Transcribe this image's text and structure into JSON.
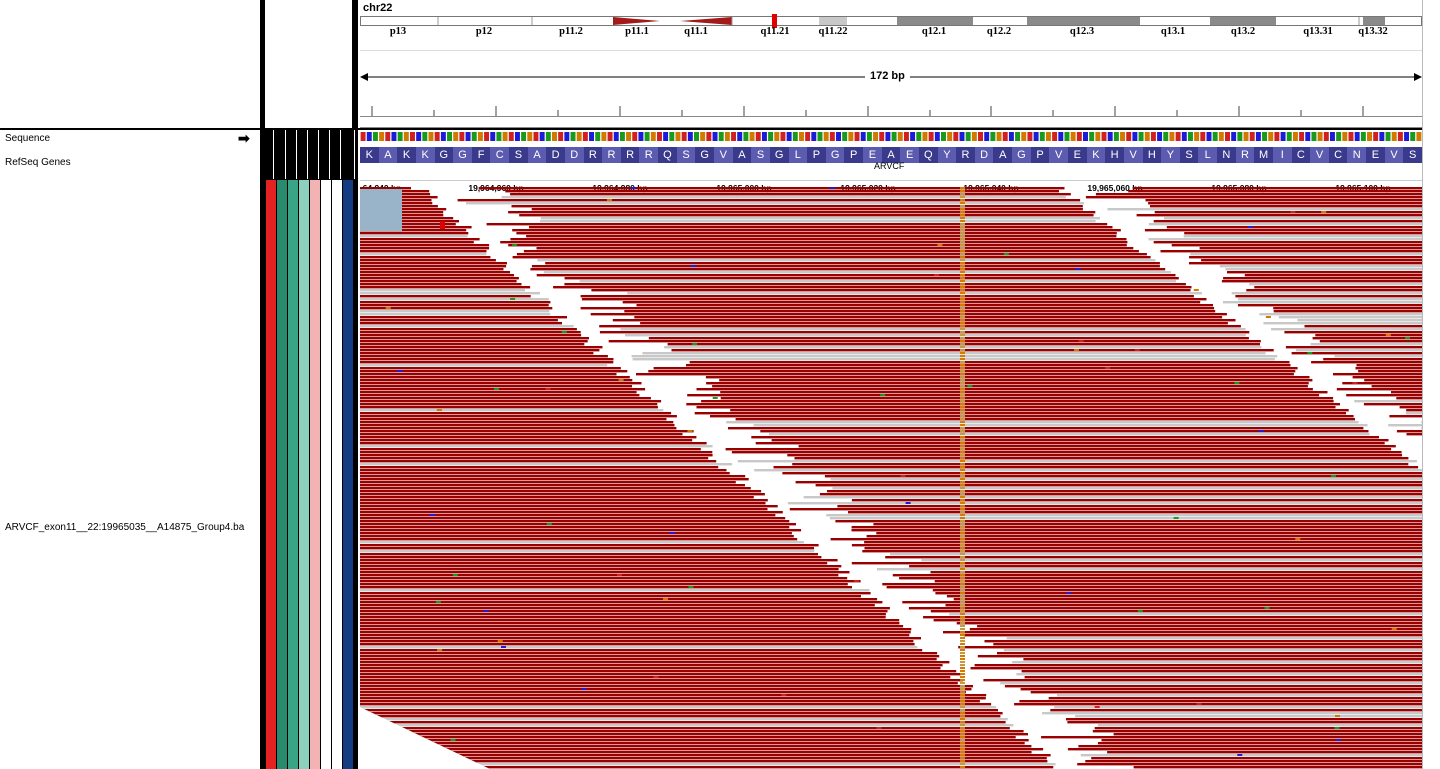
{
  "ideogram": {
    "chromosome": "chr22",
    "bands": [
      "p13",
      "p12",
      "p11.2",
      "p11.1",
      "q11.1",
      "q11.21",
      "q11.22",
      "q12.1",
      "q12.2",
      "q12.3",
      "q13.1",
      "q13.2",
      "q13.31",
      "q13.32"
    ]
  },
  "ruler": {
    "span": "172 bp",
    "ticks": [
      "64,940 bp",
      "19,964,960 bp",
      "19,964,980 bp",
      "19,965,000 bp",
      "19,965,020 bp",
      "19,965,040 bp",
      "19,965,060 bp",
      "19,965,080 bp",
      "19,965,100 bp"
    ]
  },
  "tracks": {
    "sequence": "Sequence",
    "refseq": "RefSeq Genes",
    "bam": "ARVCF_exon11__22:19965035__A14875_Group4.ba"
  },
  "gene": {
    "name": "ARVCF",
    "amino_acids": [
      "K",
      "A",
      "K",
      "K",
      "G",
      "G",
      "F",
      "C",
      "S",
      "A",
      "D",
      "D",
      "R",
      "R",
      "R",
      "R",
      "Q",
      "S",
      "G",
      "V",
      "A",
      "S",
      "G",
      "L",
      "P",
      "G",
      "P",
      "E",
      "A",
      "E",
      "Q",
      "Y",
      "R",
      "D",
      "A",
      "G",
      "P",
      "V",
      "E",
      "K",
      "H",
      "V",
      "H",
      "Y",
      "S",
      "L",
      "N",
      "R",
      "M",
      "I",
      "C",
      "V",
      "C",
      "N",
      "E",
      "V",
      "S"
    ]
  },
  "colors": {
    "read": "#990000",
    "read_light": "#c8c8c8",
    "softclip": "#99b3c8",
    "snv": "#d97a00",
    "attr": [
      "#e52222",
      "#2a8a6e",
      "#3aa486",
      "#8dd0bd",
      "#f4b3b3",
      "#ffffff",
      "#ffffff",
      "#143c82"
    ]
  },
  "icons": {
    "strand": "right-arrow-icon"
  }
}
